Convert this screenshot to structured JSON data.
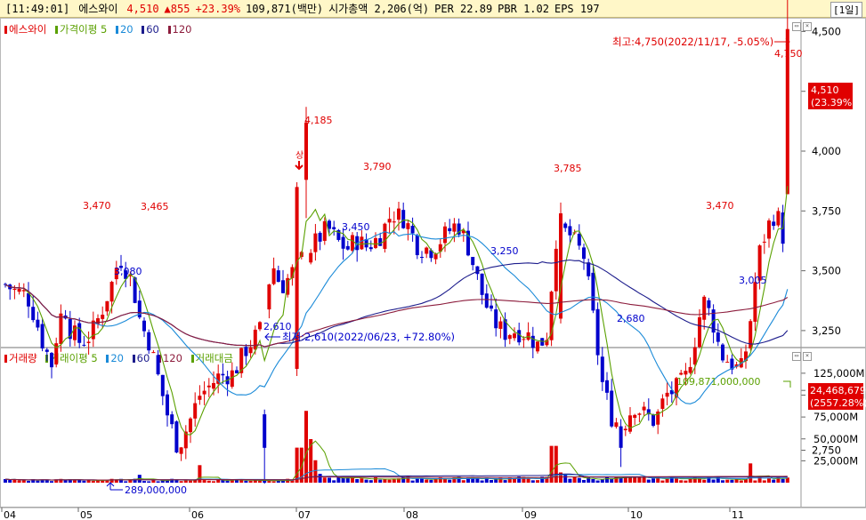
{
  "header": {
    "time": "[11:49:01]",
    "name": "에스와이",
    "price": "4,510",
    "change": "▲855",
    "pct": "+23.39%",
    "volume": "109,871(백만)",
    "mcap": "시가총액 2,206(억)",
    "per": "PER 22.89",
    "pbr": "PBR 1.02",
    "eps": "EPS 197",
    "range_button": "[1일]"
  },
  "price_legend": [
    "에스와이",
    "가격이평 5",
    "20",
    "60",
    "120"
  ],
  "volume_legend": [
    "거래량",
    "거래이평 5",
    "20",
    "60",
    "120",
    "거래대금"
  ],
  "colors": {
    "up": "#e00000",
    "down": "#0000cc",
    "ma5": "#5aa000",
    "ma20": "#1a8ad8",
    "ma60": "#1c1c8c",
    "ma120": "#8c1c3c",
    "amount": "#5aa000"
  },
  "annotations": {
    "high": "최고:4,750(2022/11/17, -5.05%)",
    "low": "최저:2,610(2022/06/23, +72.80%)",
    "high_val": "4,750",
    "low_val": "2,610",
    "labels": [
      "3,470",
      "3,465",
      "3,080",
      "4,185",
      "3,790",
      "3,450",
      "3,785",
      "3,250",
      "2,680",
      "3,470",
      "3,005"
    ],
    "up_mark": "상",
    "vol_peak": "109,871,000,000",
    "vol_min": "289,000,000"
  },
  "current": {
    "price": "4,510",
    "pct": "(23.39%)",
    "volume": "24,468,679",
    "vol_pct": "(2557.28%)"
  },
  "chart_data": {
    "type": "candlestick",
    "x_ticks": [
      "04",
      "05",
      "06",
      "07",
      "08",
      "09",
      "10",
      "11"
    ],
    "price_axis": {
      "ticks": [
        2750,
        3000,
        3250,
        3500,
        3750,
        4000,
        4250,
        4500,
        4750
      ],
      "ylim": [
        2430,
        5000
      ]
    },
    "volume_axis": {
      "ticks": [
        "25,000M",
        "50,000M",
        "75,000M",
        "100,000M",
        "125,000M"
      ],
      "ylim": [
        0,
        150000
      ]
    },
    "anchor_points": [
      {
        "date": "2022/06/23",
        "low": 2610
      },
      {
        "date": "2022/11/17",
        "high": 4750
      },
      {
        "label": "current",
        "close": 4510,
        "change_pct": 23.39
      }
    ],
    "labeled_levels": [
      3470,
      3465,
      3080,
      4185,
      3790,
      3450,
      3785,
      3250,
      2680,
      3470,
      3005
    ]
  }
}
